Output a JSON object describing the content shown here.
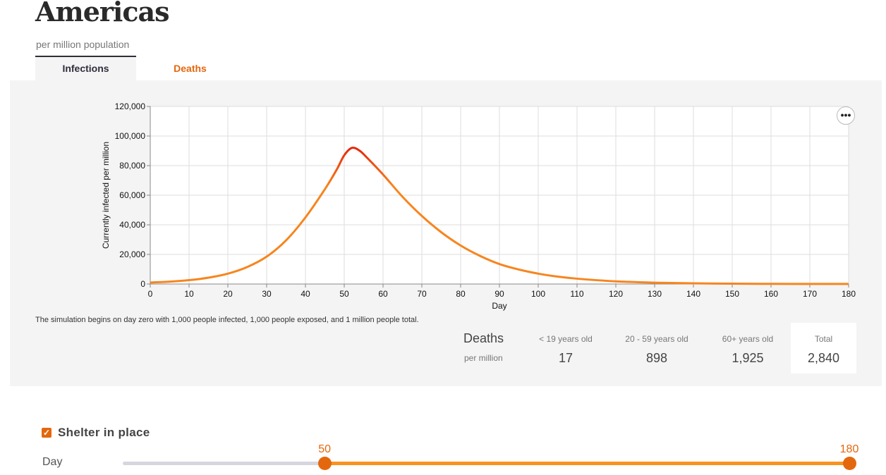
{
  "header": {
    "title": "Americas",
    "subtitle": "per million population"
  },
  "tabs": [
    {
      "label": "Infections",
      "active": true
    },
    {
      "label": "Deaths",
      "active": false
    }
  ],
  "menu": {
    "icon": "more-horizontal-icon",
    "glyph": "•••"
  },
  "note": "The simulation begins on day zero with 1,000 people infected, 1,000 people exposed, and 1 million people total.",
  "deaths_table": {
    "title": "Deaths",
    "subtitle": "per million",
    "columns": [
      {
        "label": "< 19 years old",
        "value": "17"
      },
      {
        "label": "20 - 59 years old",
        "value": "898"
      },
      {
        "label": "60+ years old",
        "value": "1,925"
      }
    ],
    "total": {
      "label": "Total",
      "value": "2,840"
    }
  },
  "controls": {
    "shelter_label": "Shelter in place",
    "shelter_checked": true,
    "day_label": "Day",
    "slider": {
      "min": 0,
      "max": 180,
      "start": 50,
      "end": 180,
      "start_label": "50",
      "end_label": "180"
    }
  },
  "colors": {
    "accent": "#e4670d",
    "line_low": "#f7851e",
    "line_peak": "#e00000",
    "slider_fill": "#f7931e"
  },
  "chart_data": {
    "type": "line",
    "xlabel": "Day",
    "ylabel": "Currently infected per million",
    "xlim": [
      0,
      180
    ],
    "ylim": [
      0,
      120000
    ],
    "x_ticks": [
      0,
      10,
      20,
      30,
      40,
      50,
      60,
      70,
      80,
      90,
      100,
      110,
      120,
      130,
      140,
      150,
      160,
      170,
      180
    ],
    "y_ticks": [
      0,
      20000,
      40000,
      60000,
      80000,
      100000,
      120000
    ],
    "y_tick_labels": [
      "0",
      "20,000",
      "40,000",
      "60,000",
      "80,000",
      "100,000",
      "120,000"
    ],
    "grid": true,
    "series": [
      {
        "x": [
          0,
          5,
          10,
          15,
          20,
          25,
          30,
          35,
          40,
          45,
          48,
          50,
          52,
          54,
          56,
          60,
          65,
          70,
          75,
          80,
          85,
          90,
          95,
          100,
          105,
          110,
          120,
          130,
          140,
          150,
          160,
          170,
          180
        ],
        "values": [
          1000,
          1600,
          2600,
          4300,
          7000,
          11500,
          18500,
          29500,
          45000,
          64000,
          77000,
          87000,
          92000,
          90000,
          85000,
          74000,
          59000,
          46000,
          35000,
          26000,
          19000,
          13500,
          9800,
          7000,
          5000,
          3600,
          1800,
          900,
          450,
          220,
          110,
          60,
          30
        ]
      }
    ]
  }
}
